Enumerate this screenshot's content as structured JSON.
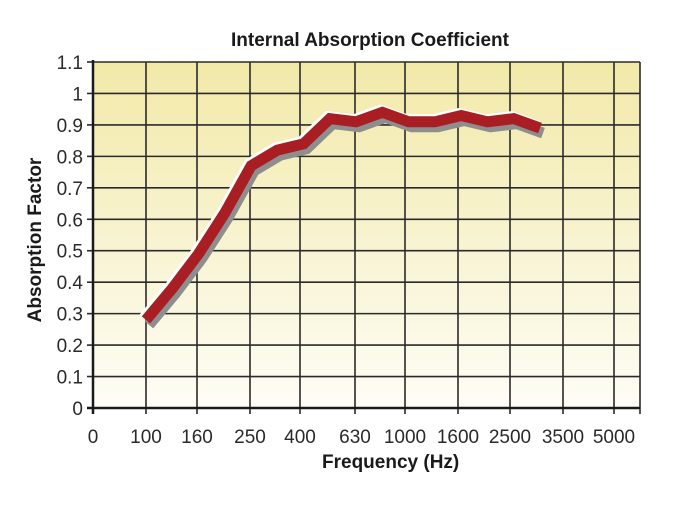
{
  "chart_data": {
    "type": "line",
    "title": "Internal Absorption Coefficient",
    "xlabel": "Frequency (Hz)",
    "ylabel": "Absorption Factor",
    "x_tick_labels": [
      "0",
      "100",
      "160",
      "250",
      "400",
      "630",
      "1000",
      "1600",
      "2500",
      "3500",
      "5000"
    ],
    "y_tick_labels": [
      "0",
      "0.1",
      "0.2",
      "0.3",
      "0.4",
      "0.5",
      "0.6",
      "0.7",
      "0.8",
      "0.9",
      "1",
      "1.1"
    ],
    "ylim": [
      0,
      1.1
    ],
    "grid": true,
    "legend": null,
    "series": [
      {
        "name": "Absorption Factor",
        "color": "#a81e22",
        "x": [
          100,
          125,
          160,
          200,
          250,
          315,
          400,
          500,
          630,
          800,
          1000,
          1250,
          1600,
          2000,
          2500,
          3150
        ],
        "values": [
          0.28,
          0.38,
          0.49,
          0.62,
          0.77,
          0.82,
          0.84,
          0.92,
          0.91,
          0.94,
          0.91,
          0.91,
          0.93,
          0.91,
          0.92,
          0.89
        ]
      }
    ]
  },
  "colors": {
    "plot_bg_top": "#f2e9a8",
    "plot_bg_bottom": "#fefdf6",
    "grid": "#2a2a2a",
    "line": "#a81e22",
    "line_shadow": "#8e8e8e",
    "line_highlight": "#ffffff"
  }
}
